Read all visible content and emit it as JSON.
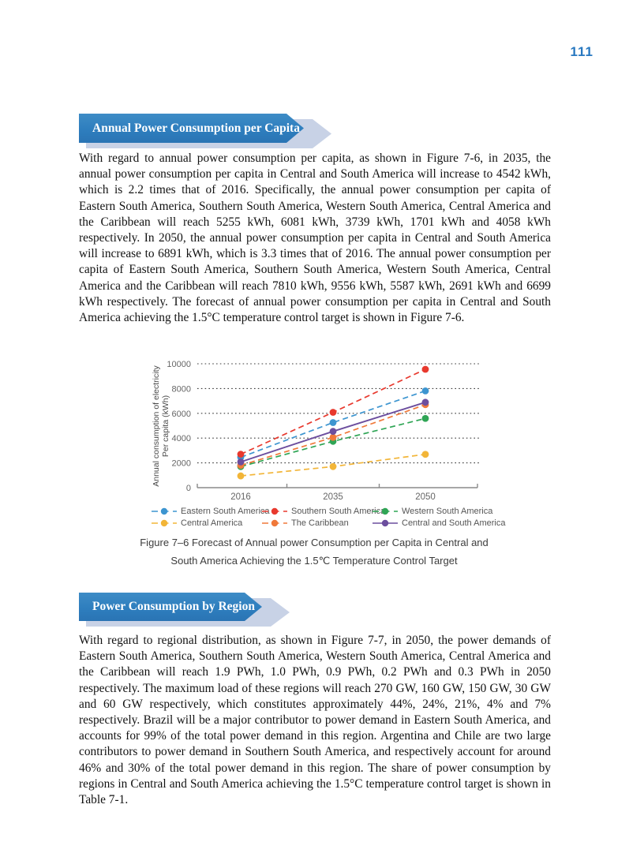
{
  "page": {
    "number": "111"
  },
  "colors": {
    "accent_blue": "#2878C0",
    "banner_blue": "#2E7EBE",
    "banner_shadow": "#C8D2E6",
    "axis_gray": "#8a8a8a",
    "tick_label_gray": "#666666"
  },
  "section1": {
    "title": "Annual Power Consumption per Capita",
    "body": "With regard to annual power consumption per capita, as shown in Figure 7-6, in 2035, the annual power consumption per capita in Central and South America will increase to 4542 kWh, which is 2.2 times that of 2016. Specifically, the annual power consumption per capita of Eastern South America, Southern South America, Western South America, Central America and the Caribbean will reach 5255 kWh, 6081 kWh, 3739 kWh, 1701 kWh and 4058 kWh respectively. In 2050, the annual power consumption per capita in Central and South America will increase to 6891 kWh, which is 3.3 times that of 2016. The annual power consumption per capita of Eastern South America, Southern South America, Western South America, Central America and the Caribbean will reach 7810 kWh, 9556 kWh, 5587 kWh, 2691 kWh and 6699 kWh respectively. The forecast of annual power consumption per capita in Central and South America achieving the 1.5°C temperature control target is shown in Figure 7-6."
  },
  "figure": {
    "caption_line1": "Figure 7–6   Forecast of Annual power Consumption per Capita in Central and",
    "caption_line2": "South America Achieving the 1.5℃ Temperature Control Target"
  },
  "section2": {
    "title": "Power Consumption by Region",
    "body": "With regard to regional distribution, as shown in Figure 7-7, in 2050, the power demands of Eastern South America, Southern South America, Western South America, Central America and the Caribbean will reach 1.9 PWh, 1.0 PWh, 0.9 PWh, 0.2 PWh and 0.3 PWh in 2050 respectively. The maximum load of these regions will reach 270 GW, 160 GW, 150 GW, 30 GW and 60 GW respectively, which constitutes approximately 44%, 24%, 21%, 4% and 7% respectively. Brazil will be a major contributor to power demand in Eastern South America, and accounts for 99% of the total power demand in this region. Argentina and Chile are two large contributors to power demand in Southern South America, and respectively account for around 46% and 30% of the total power demand in this region. The share of power consumption by regions in Central and South America achieving the 1.5°C temperature control target is shown in Table 7-1."
  },
  "chart_data": {
    "type": "line",
    "x": [
      "2016",
      "2035",
      "2050"
    ],
    "ylabel_line1": "Annual consumption of electricity",
    "ylabel_line2": "Per capita (kWh)",
    "ylim": [
      0,
      10000
    ],
    "yticks": [
      0,
      2000,
      4000,
      6000,
      8000,
      10000
    ],
    "grid": "horizontal dotted",
    "legend_position": "bottom",
    "series": [
      {
        "name": "Eastern South America",
        "color": "#3D95D0",
        "style": "dashed",
        "values": [
          2450,
          5255,
          7810
        ]
      },
      {
        "name": "Southern South America",
        "color": "#E8392E",
        "style": "dashed",
        "values": [
          2700,
          6081,
          9556
        ]
      },
      {
        "name": "Western South America",
        "color": "#2FA555",
        "style": "dashed",
        "values": [
          1700,
          3739,
          5587
        ]
      },
      {
        "name": "Central America",
        "color": "#F2B538",
        "style": "dashed",
        "values": [
          950,
          1701,
          2691
        ]
      },
      {
        "name": "The Caribbean",
        "color": "#F0793A",
        "style": "dashed",
        "values": [
          1800,
          4058,
          6699
        ]
      },
      {
        "name": "Central and South America",
        "color": "#6C4E9E",
        "style": "solid",
        "values": [
          2080,
          4542,
          6891
        ]
      }
    ]
  }
}
